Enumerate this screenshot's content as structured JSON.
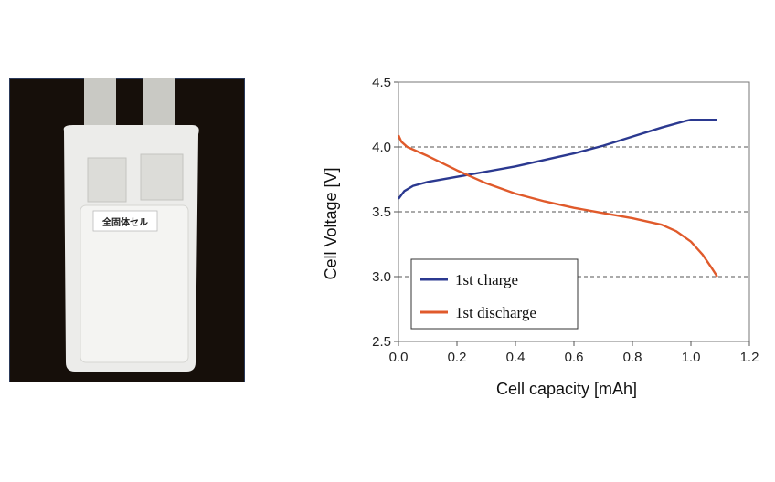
{
  "photo": {
    "label_text": "全固体セル"
  },
  "chart_data": {
    "type": "line",
    "xlabel": "Cell capacity [mAh]",
    "ylabel": "Cell Voltage [V]",
    "xlim": [
      0.0,
      1.2
    ],
    "ylim": [
      2.5,
      4.5
    ],
    "xticks": [
      "0.0",
      "0.2",
      "0.4",
      "0.6",
      "0.8",
      "1.0",
      "1.2"
    ],
    "yticks": [
      "2.5",
      "3.0",
      "3.5",
      "4.0",
      "4.5"
    ],
    "reference_lines_y": [
      3.0,
      3.5,
      4.0
    ],
    "legend_position": "bottom-left",
    "series": [
      {
        "name": "1st charge",
        "color": "#2b3990",
        "x": [
          0.0,
          0.02,
          0.05,
          0.1,
          0.2,
          0.3,
          0.4,
          0.5,
          0.6,
          0.7,
          0.8,
          0.9,
          0.98,
          1.0,
          1.09
        ],
        "y": [
          3.6,
          3.66,
          3.7,
          3.73,
          3.77,
          3.81,
          3.85,
          3.9,
          3.95,
          4.01,
          4.08,
          4.15,
          4.2,
          4.21,
          4.21
        ]
      },
      {
        "name": "1st discharge",
        "color": "#e05a2b",
        "x": [
          0.0,
          0.01,
          0.03,
          0.1,
          0.2,
          0.3,
          0.4,
          0.5,
          0.6,
          0.7,
          0.8,
          0.9,
          0.95,
          1.0,
          1.04,
          1.07,
          1.09
        ],
        "y": [
          4.09,
          4.04,
          4.0,
          3.93,
          3.82,
          3.72,
          3.64,
          3.58,
          3.53,
          3.49,
          3.45,
          3.4,
          3.35,
          3.27,
          3.17,
          3.07,
          3.0
        ]
      }
    ]
  }
}
